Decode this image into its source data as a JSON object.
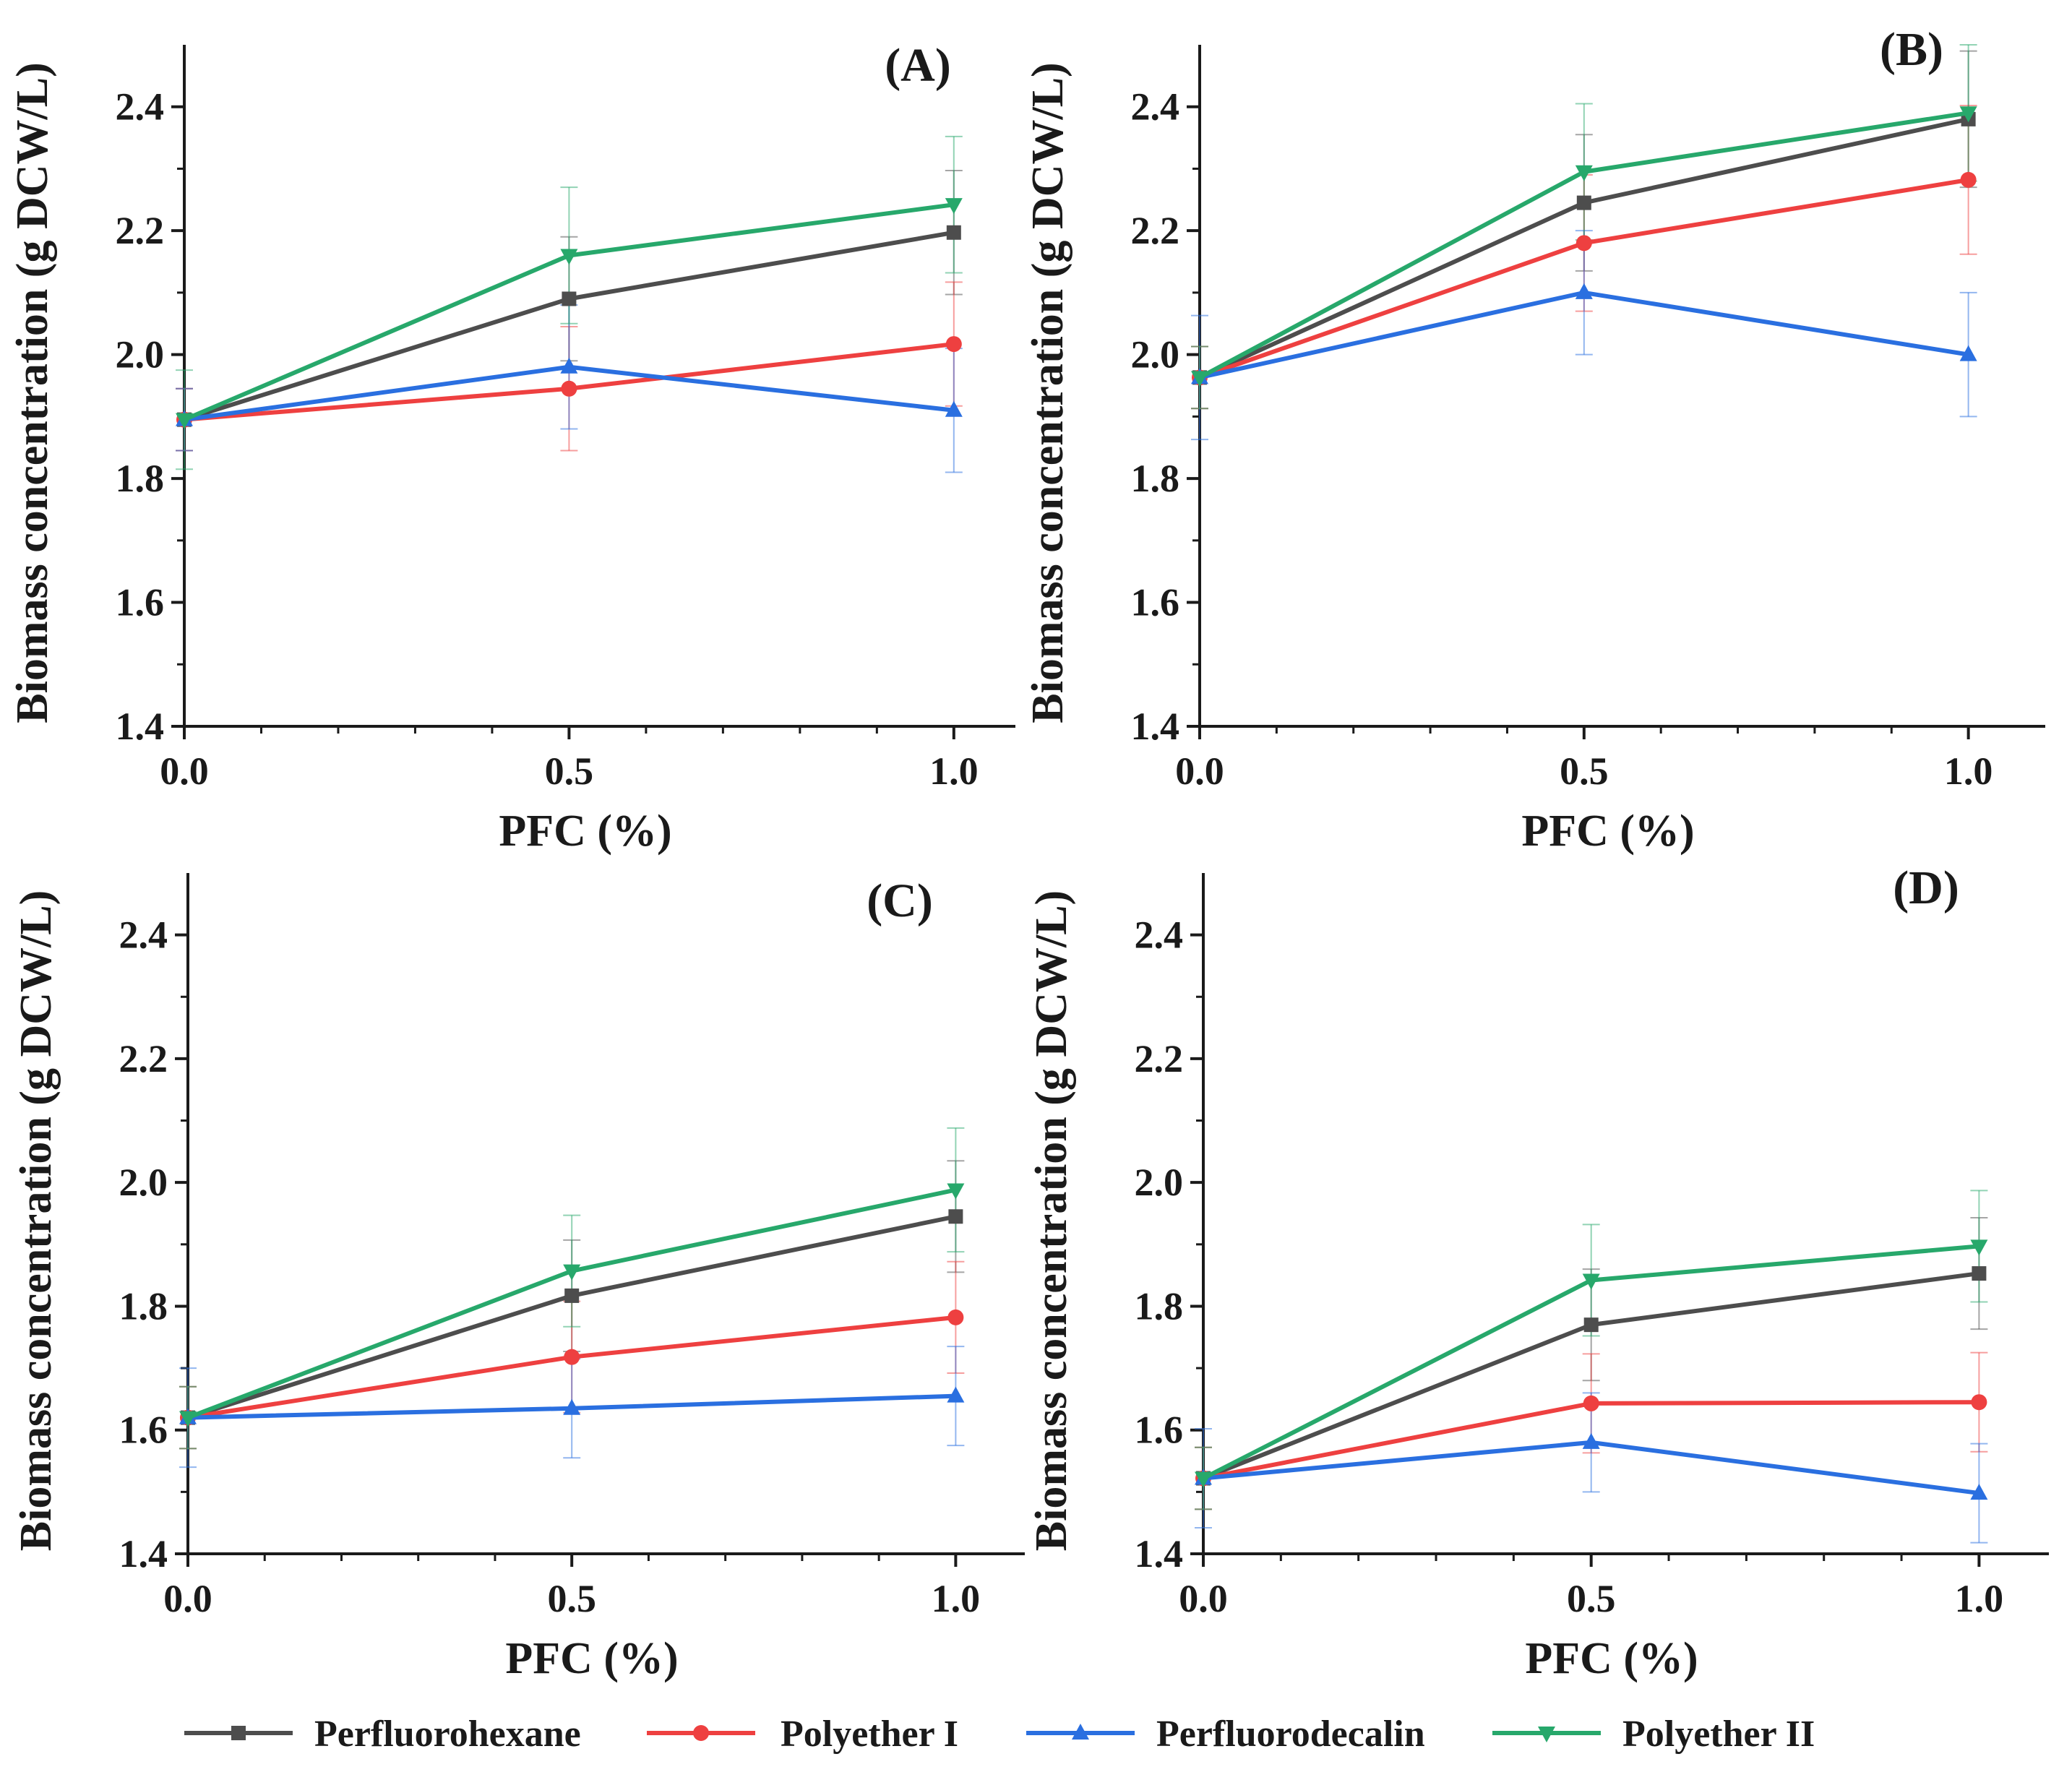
{
  "colors": {
    "Perfluorohexane": "#4d4d4d",
    "Polyether I": "#ee4040",
    "Perfluorodecalin": "#2a6fe0",
    "Polyether II": "#27a86b",
    "axis": "#1a1a1a"
  },
  "legend": [
    {
      "name": "Perfluorohexane",
      "marker": "square"
    },
    {
      "name": "Polyether I",
      "marker": "circle"
    },
    {
      "name": "Perfluorodecalin",
      "marker": "triangle-up"
    },
    {
      "name": "Polyether II",
      "marker": "triangle-down"
    }
  ],
  "chart_data": [
    {
      "type": "line",
      "panel_label": "(A)",
      "xlabel": "PFC (%)",
      "ylabel": "Biomass concentration (g DCW/L)",
      "x": [
        0.0,
        0.5,
        1.0
      ],
      "xlim": [
        0.0,
        1.08
      ],
      "ylim": [
        1.4,
        2.5
      ],
      "xticks": [
        "0.0",
        "0.5",
        "1.0"
      ],
      "yticks": [
        "1.4",
        "1.6",
        "1.8",
        "2.0",
        "2.2",
        "2.4"
      ],
      "series": [
        {
          "name": "Perfluorohexane",
          "values": [
            1.895,
            2.09,
            2.197
          ],
          "errors": [
            0.05,
            0.1,
            0.1
          ]
        },
        {
          "name": "Polyether I",
          "values": [
            1.895,
            1.945,
            2.017
          ],
          "errors": [
            0.05,
            0.1,
            0.1
          ]
        },
        {
          "name": "Perfluorodecalin",
          "values": [
            1.895,
            1.98,
            1.91
          ],
          "errors": [
            0.05,
            0.1,
            0.1
          ]
        },
        {
          "name": "Polyether II",
          "values": [
            1.895,
            2.16,
            2.242
          ],
          "errors": [
            0.08,
            0.11,
            0.11
          ]
        }
      ]
    },
    {
      "type": "line",
      "panel_label": "(B)",
      "xlabel": "PFC (%)",
      "ylabel": "Biomass concentration (g DCW/L)",
      "x": [
        0.0,
        0.5,
        1.0
      ],
      "xlim": [
        0.0,
        1.1
      ],
      "ylim": [
        1.4,
        2.5
      ],
      "xticks": [
        "0.0",
        "0.5",
        "1.0"
      ],
      "yticks": [
        "1.4",
        "1.6",
        "1.8",
        "2.0",
        "2.2",
        "2.4"
      ],
      "series": [
        {
          "name": "Perfluorohexane",
          "values": [
            1.963,
            2.245,
            2.38
          ],
          "errors": [
            0.05,
            0.11,
            0.11
          ]
        },
        {
          "name": "Polyether I",
          "values": [
            1.963,
            2.18,
            2.282
          ],
          "errors": [
            0.05,
            0.11,
            0.12
          ]
        },
        {
          "name": "Perfluorodecalin",
          "values": [
            1.963,
            2.1,
            2.0
          ],
          "errors": [
            0.1,
            0.1,
            0.1
          ]
        },
        {
          "name": "Polyether II",
          "values": [
            1.963,
            2.295,
            2.39
          ],
          "errors": [
            0.05,
            0.11,
            0.11
          ]
        }
      ]
    },
    {
      "type": "line",
      "panel_label": "(C)",
      "xlabel": "PFC (%)",
      "ylabel": "Biomass concentration (g DCW/L)",
      "x": [
        0.0,
        0.5,
        1.0
      ],
      "xlim": [
        0.0,
        1.09
      ],
      "ylim": [
        1.4,
        2.5
      ],
      "xticks": [
        "0.0",
        "0.5",
        "1.0"
      ],
      "yticks": [
        "1.4",
        "1.6",
        "1.8",
        "2.0",
        "2.2",
        "2.4"
      ],
      "series": [
        {
          "name": "Perfluorohexane",
          "values": [
            1.62,
            1.817,
            1.945
          ],
          "errors": [
            0.05,
            0.09,
            0.09
          ]
        },
        {
          "name": "Polyether I",
          "values": [
            1.62,
            1.718,
            1.782
          ],
          "errors": [
            0.05,
            0.09,
            0.09
          ]
        },
        {
          "name": "Perfluorodecalin",
          "values": [
            1.62,
            1.635,
            1.655
          ],
          "errors": [
            0.08,
            0.08,
            0.08
          ]
        },
        {
          "name": "Polyether II",
          "values": [
            1.62,
            1.857,
            1.988
          ],
          "errors": [
            0.05,
            0.09,
            0.1
          ]
        }
      ]
    },
    {
      "type": "line",
      "panel_label": "(D)",
      "xlabel": "PFC (%)",
      "ylabel": "Biomass concentration (g DCW/L)",
      "x": [
        0.0,
        0.5,
        1.0
      ],
      "xlim": [
        0.0,
        1.09
      ],
      "ylim": [
        1.4,
        2.5
      ],
      "xticks": [
        "0.0",
        "0.5",
        "1.0"
      ],
      "yticks": [
        "1.4",
        "1.6",
        "1.8",
        "2.0",
        "2.2",
        "2.4"
      ],
      "series": [
        {
          "name": "Perfluorohexane",
          "values": [
            1.522,
            1.77,
            1.853
          ],
          "errors": [
            0.05,
            0.09,
            0.09
          ]
        },
        {
          "name": "Polyether I",
          "values": [
            1.522,
            1.643,
            1.645
          ],
          "errors": [
            0.05,
            0.08,
            0.08
          ]
        },
        {
          "name": "Perfluorodecalin",
          "values": [
            1.522,
            1.58,
            1.498
          ],
          "errors": [
            0.08,
            0.08,
            0.08
          ]
        },
        {
          "name": "Polyether II",
          "values": [
            1.522,
            1.842,
            1.897
          ],
          "errors": [
            0.05,
            0.09,
            0.09
          ]
        }
      ]
    }
  ]
}
